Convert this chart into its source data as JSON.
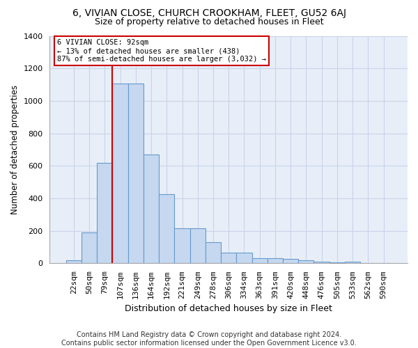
{
  "title1": "6, VIVIAN CLOSE, CHURCH CROOKHAM, FLEET, GU52 6AJ",
  "title2": "Size of property relative to detached houses in Fleet",
  "xlabel": "Distribution of detached houses by size in Fleet",
  "ylabel": "Number of detached properties",
  "footer1": "Contains HM Land Registry data © Crown copyright and database right 2024.",
  "footer2": "Contains public sector information licensed under the Open Government Licence v3.0.",
  "bar_labels": [
    "22sqm",
    "50sqm",
    "79sqm",
    "107sqm",
    "136sqm",
    "164sqm",
    "192sqm",
    "221sqm",
    "249sqm",
    "278sqm",
    "306sqm",
    "334sqm",
    "363sqm",
    "391sqm",
    "420sqm",
    "448sqm",
    "476sqm",
    "505sqm",
    "533sqm",
    "562sqm",
    "590sqm"
  ],
  "bar_values": [
    20,
    190,
    620,
    1105,
    1105,
    670,
    425,
    215,
    215,
    130,
    68,
    68,
    33,
    33,
    28,
    18,
    12,
    5,
    12,
    0,
    0
  ],
  "bar_color": "#c5d8f0",
  "bar_edge_color": "#6699cc",
  "vline_x": 2.5,
  "vline_color": "#cc0000",
  "annotation_text": "6 VIVIAN CLOSE: 92sqm\n← 13% of detached houses are smaller (438)\n87% of semi-detached houses are larger (3,032) →",
  "annotation_box_color": "#cc0000",
  "ylim": [
    0,
    1400
  ],
  "yticks": [
    0,
    200,
    400,
    600,
    800,
    1000,
    1200,
    1400
  ],
  "grid_color": "#c8d4e8",
  "bg_color": "#e8eef8",
  "title1_fontsize": 10,
  "title2_fontsize": 9,
  "xlabel_fontsize": 9,
  "ylabel_fontsize": 8.5,
  "tick_fontsize": 8,
  "footer_fontsize": 7
}
